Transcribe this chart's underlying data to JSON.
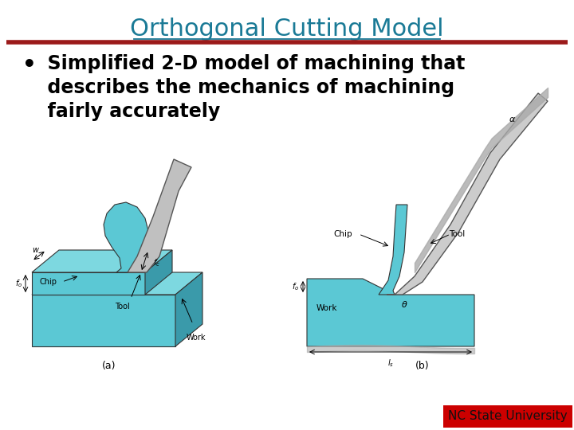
{
  "title": "Orthogonal Cutting Model",
  "title_color": "#1a7a96",
  "title_fontsize": 22,
  "separator_color": "#9b1a1a",
  "separator_thickness": 4,
  "bullet_text_line1": "  Simplified 2-D model of machining that",
  "bullet_text_line2": "  describes the mechanics of machining",
  "bullet_text_line3": "  fairly accurately",
  "bullet_color": "#000000",
  "bullet_fontsize": 17,
  "bg_color": "#ffffff",
  "footer_text": "NC State University",
  "footer_bg": "#cc0000",
  "footer_text_color": "#111111",
  "footer_fontsize": 11,
  "label_a": "(a)",
  "label_b": "(b)",
  "work_color": "#5bc8d4",
  "work_light": "#7dd8e0",
  "work_dark": "#3a9aaa",
  "tool_color": "#c0c0c0",
  "line_color": "#333333"
}
